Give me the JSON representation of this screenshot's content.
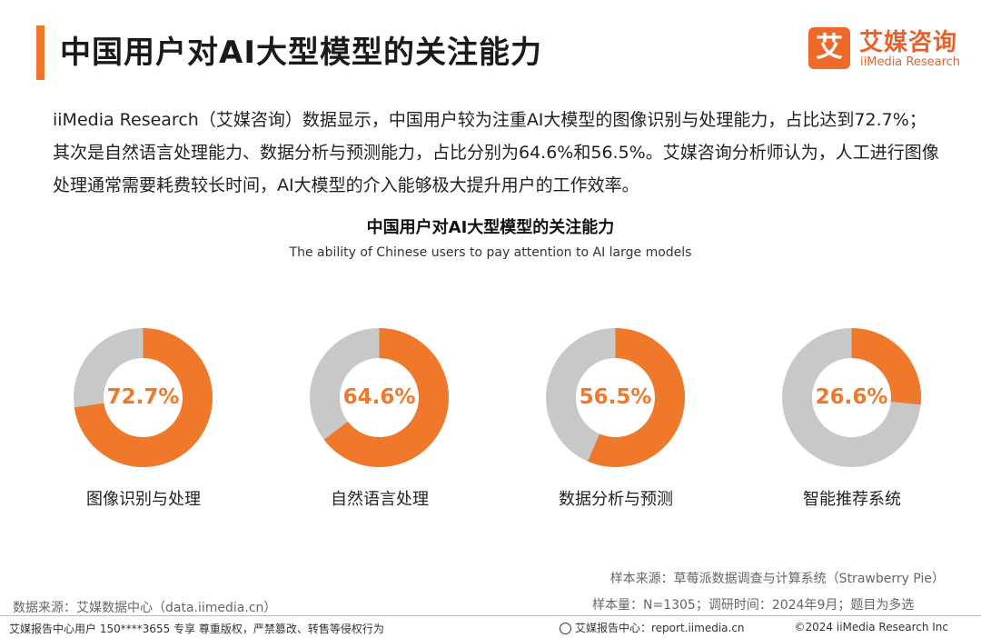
{
  "header": {
    "title": "中国用户对AI大型模型的关注能力"
  },
  "logo": {
    "mark": "艾",
    "name_cn": "艾媒咨询",
    "name_en": "iiMedia Research"
  },
  "intro_text": "iiMedia Research（艾媒咨询）数据显示，中国用户较为注重AI大模型的图像识别与处理能力，占比达到72.7%；其次是自然语言处理能力、数据分析与预测能力，占比分别为64.6%和56.5%。艾媒咨询分析师认为，人工进行图像处理通常需要耗费较长时间，AI大模型的介入能够极大提升用户的工作效率。",
  "chart_data": {
    "type": "pie",
    "subtype": "donut",
    "title": "中国用户对AI大型模型的关注能力",
    "subtitle": "The ability of Chinese users to pay attention to AI large models",
    "categories": [
      "图像识别与处理",
      "自然语言处理",
      "数据分析与预测",
      "智能推荐系统"
    ],
    "values": [
      72.7,
      64.6,
      56.5,
      26.6
    ],
    "value_labels": [
      "72.7%",
      "64.6%",
      "56.5%",
      "26.6%"
    ],
    "unit": "%",
    "colors": {
      "value": "#f0782a",
      "remainder": "#c8c8c8"
    }
  },
  "notes": {
    "sample_source": "样本来源：草莓派数据调查与计算系统（Strawberry Pie）",
    "sample_info": "样本量：N=1305；调研时间：2024年9月；题目为多选",
    "data_source": "数据来源：艾媒数据中心（data.iimedia.cn）"
  },
  "footer": {
    "left": "艾媒报告中心用户 150****3655 专享 尊重版权，严禁篡改、转售等侵权行为",
    "mid": "艾媒报告中心：report.iimedia.cn",
    "right": "©2024 iiMedia Research Inc"
  }
}
